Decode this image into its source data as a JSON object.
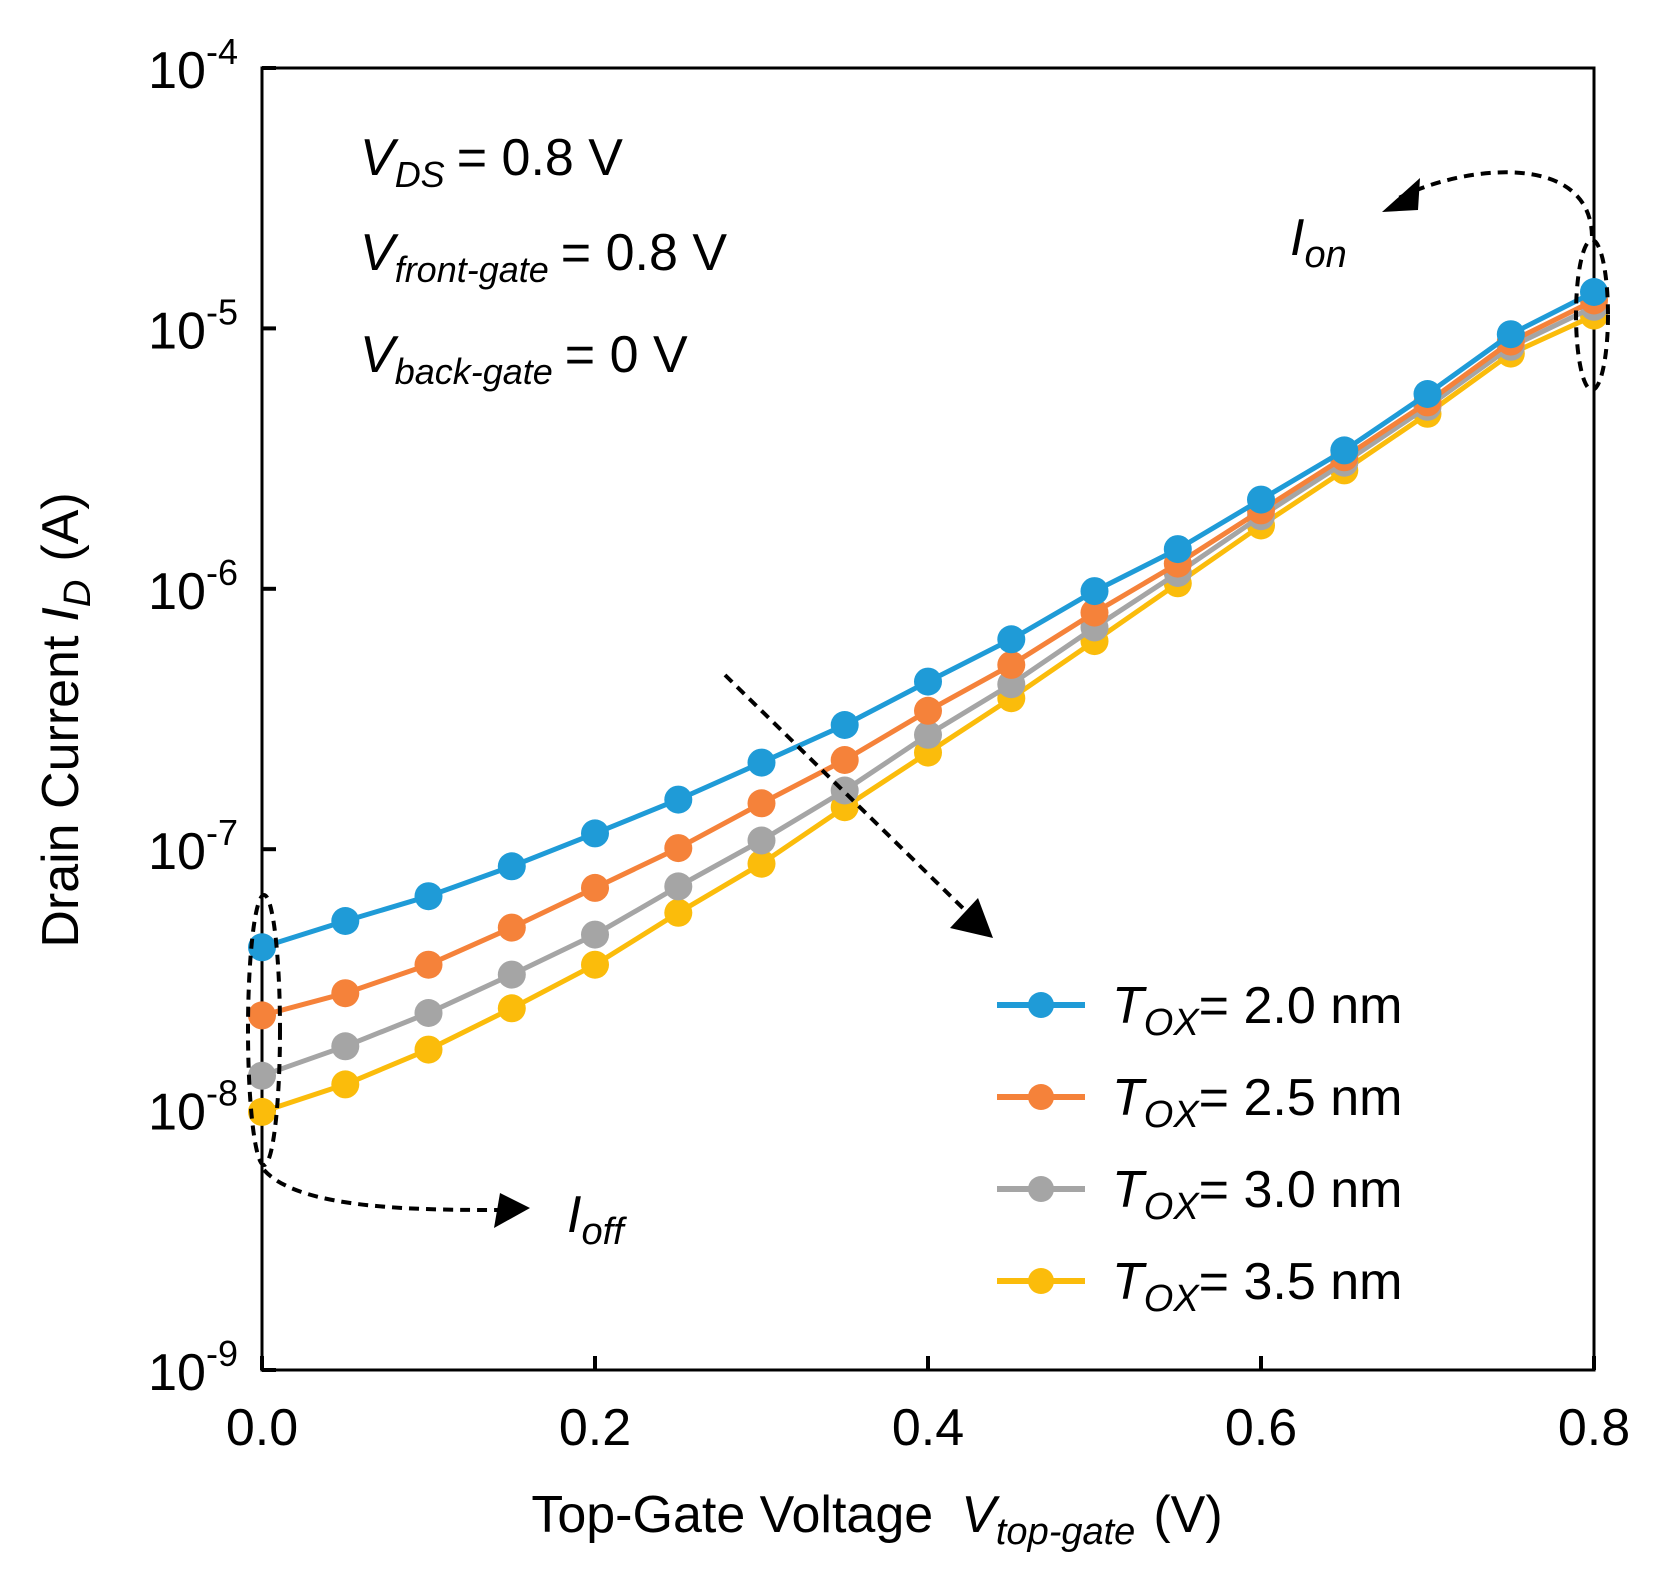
{
  "chart_data": {
    "type": "line",
    "title": "",
    "xlabel": {
      "main": "Top-Gate Voltage",
      "var_letter": "V",
      "var_sub": "top-gate",
      "unit": "(V)"
    },
    "ylabel": {
      "main": "Drain Current",
      "var_letter": "I",
      "var_sub": "D",
      "unit": "(A)"
    },
    "xlim": [
      0.0,
      0.8
    ],
    "ylim": [
      1e-09,
      0.0001
    ],
    "yscale": "log",
    "xticks": [
      "0.0",
      "0.2",
      "0.4",
      "0.6",
      "0.8"
    ],
    "yticks": [
      {
        "base": "10",
        "exp": "-9"
      },
      {
        "base": "10",
        "exp": "-8"
      },
      {
        "base": "10",
        "exp": "-7"
      },
      {
        "base": "10",
        "exp": "-6"
      },
      {
        "base": "10",
        "exp": "-5"
      },
      {
        "base": "10",
        "exp": "-4"
      }
    ],
    "x": [
      0.0,
      0.05,
      0.1,
      0.15,
      0.2,
      0.25,
      0.3,
      0.35,
      0.4,
      0.45,
      0.5,
      0.55,
      0.6,
      0.65,
      0.7,
      0.75,
      0.8
    ],
    "series": [
      {
        "name": "T_OX = 2.0 nm",
        "sym": "T",
        "sub": "OX",
        "value": "= 2.0 nm",
        "color": "#1f9bd7",
        "values": [
          4.2e-08,
          5.3e-08,
          6.6e-08,
          8.6e-08,
          1.15e-07,
          1.55e-07,
          2.15e-07,
          3e-07,
          4.4e-07,
          6.4e-07,
          9.8e-07,
          1.42e-06,
          2.2e-06,
          3.4e-06,
          5.6e-06,
          9.5e-06,
          1.38e-05
        ]
      },
      {
        "name": "T_OX = 2.5 nm",
        "sym": "T",
        "sub": "OX",
        "value": "= 2.5 nm",
        "color": "#f5823a",
        "values": [
          2.3e-08,
          2.8e-08,
          3.6e-08,
          5e-08,
          7.1e-08,
          1.01e-07,
          1.5e-07,
          2.2e-07,
          3.4e-07,
          5.1e-07,
          8.1e-07,
          1.25e-06,
          2e-06,
          3.2e-06,
          5.2e-06,
          8.9e-06,
          1.28e-05
        ]
      },
      {
        "name": "T_OX = 3.0 nm",
        "sym": "T",
        "sub": "OX",
        "value": "= 3.0 nm",
        "color": "#a5a5a5",
        "values": [
          1.35e-08,
          1.75e-08,
          2.35e-08,
          3.3e-08,
          4.7e-08,
          7.2e-08,
          1.08e-07,
          1.68e-07,
          2.75e-07,
          4.3e-07,
          7.1e-07,
          1.15e-06,
          1.9e-06,
          3.05e-06,
          5e-06,
          8.5e-06,
          1.21e-05
        ]
      },
      {
        "name": "T_OX = 3.5 nm",
        "sym": "T",
        "sub": "OX",
        "value": "= 3.5 nm",
        "color": "#fbbc0b",
        "values": [
          9.8e-09,
          1.25e-08,
          1.7e-08,
          2.45e-08,
          3.6e-08,
          5.7e-08,
          8.8e-08,
          1.45e-07,
          2.35e-07,
          3.8e-07,
          6.3e-07,
          1.05e-06,
          1.75e-06,
          2.85e-06,
          4.7e-06,
          8e-06,
          1.12e-05
        ]
      }
    ],
    "conditions": [
      {
        "letter": "V",
        "sub": "DS",
        "value": "= 0.8 V"
      },
      {
        "letter": "V",
        "sub": "front-gate",
        "value": "= 0.8 V"
      },
      {
        "letter": "V",
        "sub": "back-gate",
        "value": "= 0 V"
      }
    ],
    "annotations": {
      "ion": {
        "letter": "I",
        "sub": "on"
      },
      "ioff": {
        "letter": "I",
        "sub": "off"
      }
    },
    "legend_position": "bottom-right",
    "grid": false
  }
}
